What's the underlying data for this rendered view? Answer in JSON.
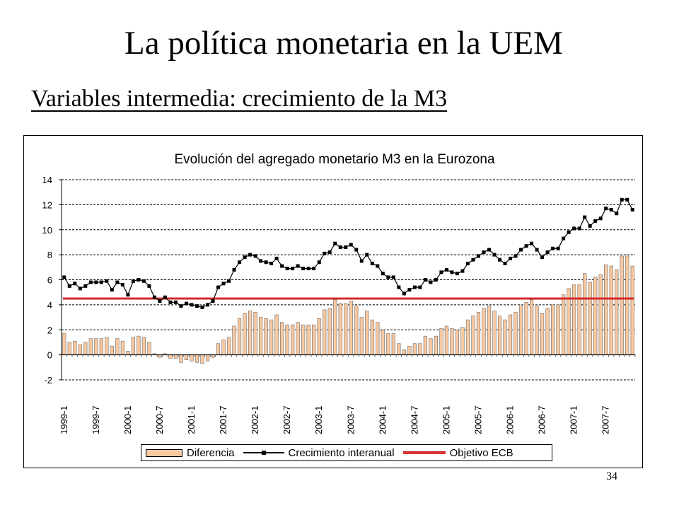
{
  "slide": {
    "title": "La política monetaria en la UEM",
    "subtitle": "Variables intermedia: crecimiento de la M3",
    "page_number": "34"
  },
  "colors": {
    "bar_fill": "#f8c8a0",
    "bar_stroke": "#555555",
    "line": "#000000",
    "target": "#e03030"
  },
  "chart_data": {
    "type": "bar",
    "title": "Evolución del agregado monetario M3 en la Eurozona",
    "xlabel": "",
    "ylabel": "",
    "ylim": [
      -2,
      14
    ],
    "yticks": [
      -2,
      0,
      2,
      4,
      6,
      8,
      10,
      12,
      14
    ],
    "grid": "horizontal dashed",
    "legend_position": "bottom",
    "x_tick_labels": [
      "1999-1",
      "1999-7",
      "2000-1",
      "2000-7",
      "2001-1",
      "2001-7",
      "2002-1",
      "2002-7",
      "2003-1",
      "2003-7",
      "2004-1",
      "2004-7",
      "2005-1",
      "2005-7",
      "2006-1",
      "2006-7",
      "2007-1",
      "2007-7"
    ],
    "x_tick_every": 6,
    "series": [
      {
        "name": "Diferencia",
        "type": "bar",
        "values": [
          1.7,
          1.0,
          1.1,
          0.8,
          1.0,
          1.3,
          1.3,
          1.3,
          1.4,
          0.7,
          1.3,
          1.1,
          0.3,
          1.4,
          1.5,
          1.4,
          1.0,
          0.1,
          -0.2,
          0.1,
          -0.3,
          -0.3,
          -0.6,
          -0.4,
          -0.5,
          -0.6,
          -0.7,
          -0.5,
          -0.2,
          0.9,
          1.2,
          1.4,
          2.3,
          2.9,
          3.3,
          3.5,
          3.4,
          3.0,
          2.9,
          2.8,
          3.2,
          2.6,
          2.4,
          2.4,
          2.6,
          2.4,
          2.4,
          2.4,
          2.9,
          3.6,
          3.7,
          4.4,
          4.1,
          4.1,
          4.3,
          3.9,
          3.0,
          3.5,
          2.8,
          2.6,
          2.0,
          1.7,
          1.7,
          0.9,
          0.4,
          0.7,
          0.9,
          0.9,
          1.5,
          1.3,
          1.5,
          2.1,
          2.3,
          2.1,
          2.0,
          2.2,
          2.8,
          3.1,
          3.4,
          3.7,
          3.9,
          3.5,
          3.1,
          2.8,
          3.2,
          3.4,
          3.9,
          4.2,
          4.4,
          3.9,
          3.3,
          3.7,
          4.0,
          4.0,
          4.8,
          5.3,
          5.6,
          5.6,
          6.5,
          5.8,
          6.2,
          6.4,
          7.2,
          7.1,
          6.8,
          7.9,
          7.9,
          7.1
        ],
        "color": "#f8c8a0"
      },
      {
        "name": "Crecimiento interanual",
        "type": "line",
        "values": [
          6.2,
          5.5,
          5.7,
          5.3,
          5.5,
          5.8,
          5.8,
          5.8,
          5.9,
          5.2,
          5.8,
          5.6,
          4.8,
          5.9,
          6.0,
          5.9,
          5.5,
          4.6,
          4.3,
          4.6,
          4.2,
          4.2,
          3.9,
          4.1,
          4.0,
          3.9,
          3.8,
          4.0,
          4.3,
          5.4,
          5.7,
          5.9,
          6.8,
          7.4,
          7.8,
          8.0,
          7.9,
          7.5,
          7.4,
          7.3,
          7.7,
          7.1,
          6.9,
          6.9,
          7.1,
          6.9,
          6.9,
          6.9,
          7.4,
          8.1,
          8.2,
          8.9,
          8.6,
          8.6,
          8.8,
          8.4,
          7.5,
          8.0,
          7.3,
          7.1,
          6.5,
          6.2,
          6.2,
          5.4,
          4.9,
          5.2,
          5.4,
          5.4,
          6.0,
          5.8,
          6.0,
          6.6,
          6.8,
          6.6,
          6.5,
          6.7,
          7.3,
          7.6,
          7.9,
          8.2,
          8.4,
          8.0,
          7.6,
          7.3,
          7.7,
          7.9,
          8.4,
          8.7,
          8.9,
          8.4,
          7.8,
          8.2,
          8.5,
          8.5,
          9.3,
          9.8,
          10.1,
          10.1,
          11.0,
          10.3,
          10.7,
          10.9,
          11.7,
          11.6,
          11.3,
          12.4,
          12.4,
          11.6
        ],
        "color": "#000000"
      },
      {
        "name": "Objetivo ECB",
        "type": "line",
        "values": [
          4.5
        ],
        "constant": true,
        "color": "#e03030"
      }
    ]
  }
}
